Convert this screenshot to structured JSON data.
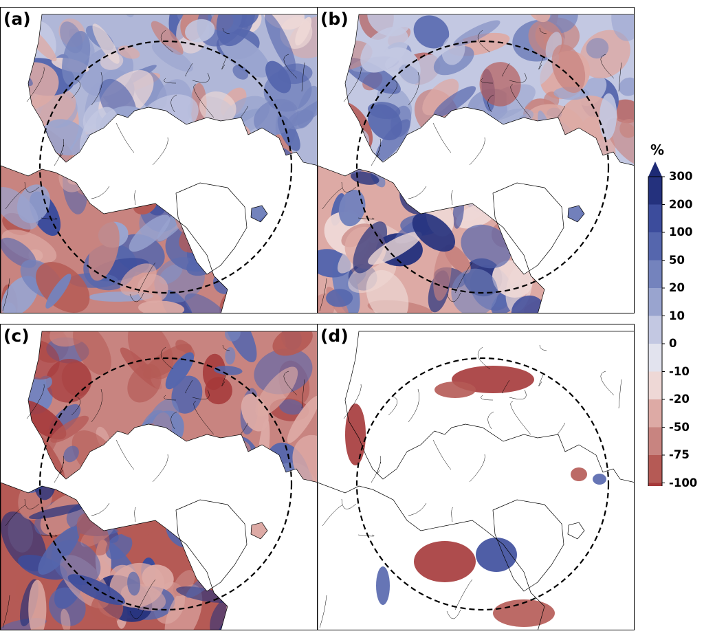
{
  "figure": {
    "panels": [
      {
        "label": "(a)"
      },
      {
        "label": "(b)"
      },
      {
        "label": "(c)"
      },
      {
        "label": "(d)"
      }
    ],
    "colorbar": {
      "unit": "%",
      "extend": "max",
      "levels": [
        "300",
        "200",
        "100",
        "50",
        "20",
        "10",
        "0",
        "-10",
        "-20",
        "-50",
        "-75",
        "-100"
      ],
      "colors": [
        "#24317d",
        "#3c4c9c",
        "#5566ad",
        "#7483bd",
        "#99a4cf",
        "#c3c8e2",
        "#e2e3ee",
        "#eed8d6",
        "#ddaaa5",
        "#c88480",
        "#b55a55",
        "#a5393a"
      ],
      "arrow_color": "#1d2a75"
    },
    "map_style": {
      "land_border_color": "#000000",
      "circle_style": "dashed",
      "projection": "north-polar-stereographic"
    }
  }
}
